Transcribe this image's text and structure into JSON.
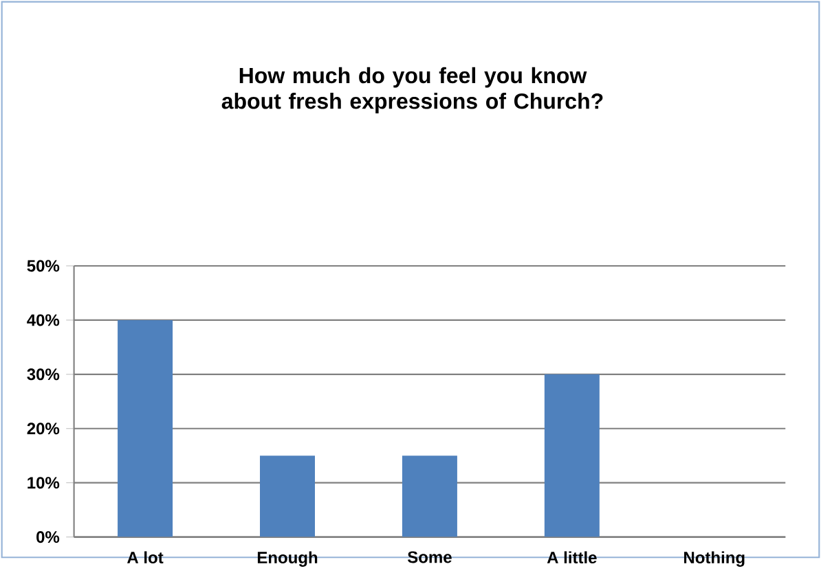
{
  "chart_data": {
    "type": "bar",
    "title": "How much do you feel you know about fresh expressions of Church?",
    "categories": [
      "A lot",
      "Enough",
      "Some",
      "A little",
      "Nothing"
    ],
    "values": [
      40,
      15,
      15,
      30,
      0
    ],
    "color": "#4f81bd",
    "ylim": [
      0,
      50
    ],
    "yticks": [
      {
        "value": 0,
        "label": "0%"
      },
      {
        "value": 10,
        "label": "10%"
      },
      {
        "value": 20,
        "label": "20%"
      },
      {
        "value": 30,
        "label": "30%"
      },
      {
        "value": 40,
        "label": "40%"
      },
      {
        "value": 50,
        "label": "50%"
      }
    ],
    "grid": "y"
  }
}
